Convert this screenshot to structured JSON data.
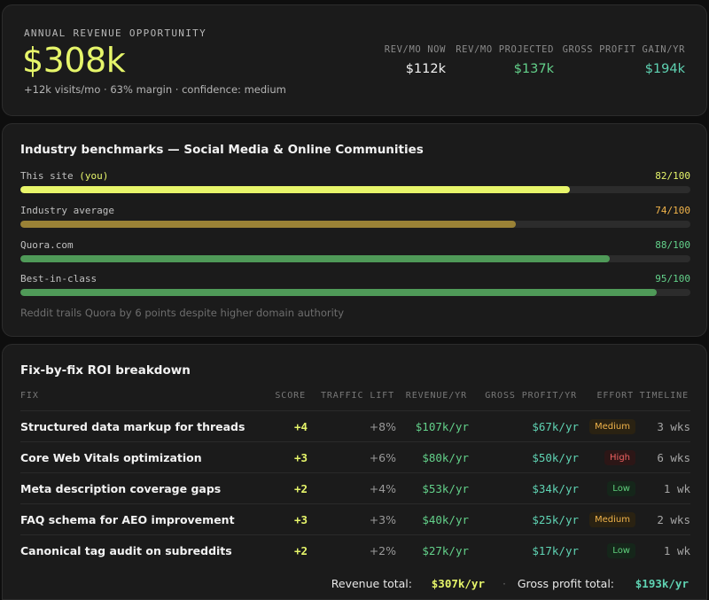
{
  "summary": {
    "kicker": "ANNUAL REVENUE OPPORTUNITY",
    "value": "$308k",
    "subline": "+12k visits/mo · 63% margin · confidence: medium",
    "metrics": [
      {
        "label": "REV/MO NOW",
        "value": "$112k"
      },
      {
        "label": "REV/MO PROJECTED",
        "value": "$137k"
      },
      {
        "label": "GROSS PROFIT GAIN/YR",
        "value": "$194k"
      }
    ]
  },
  "benchmarks": {
    "title": "Industry benchmarks — Social Media & Online Communities",
    "rows": [
      {
        "name": "This site",
        "suffix": "(you)",
        "score_text": "82/100",
        "score": 82,
        "color": "#e8f56a"
      },
      {
        "name": "Industry average",
        "suffix": "",
        "score_text": "74/100",
        "score": 74,
        "color": "#9a8236"
      },
      {
        "name": "Quora.com",
        "suffix": "",
        "score_text": "88/100",
        "score": 88,
        "color": "#4f9a58"
      },
      {
        "name": "Best-in-class",
        "suffix": "",
        "score_text": "95/100",
        "score": 95,
        "color": "#4f9a58"
      }
    ],
    "score_colors": [
      "#e6f56a",
      "#f0b34a",
      "#63d18a",
      "#63d18a"
    ],
    "note": "Reddit trails Quora by 6 points despite higher domain authority"
  },
  "roi": {
    "title": "Fix-by-fix ROI breakdown",
    "headers": {
      "fix": "FIX",
      "score": "SCORE",
      "lift": "TRAFFIC LIFT",
      "revenue": "REVENUE/YR",
      "gross_profit": "GROSS PROFIT/YR",
      "effort": "EFFORT",
      "timeline": "TIMELINE"
    },
    "rows": [
      {
        "fix": "Structured data markup for threads",
        "score": "+4",
        "lift": "+8%",
        "revenue": "$107k/yr",
        "gross_profit": "$67k/yr",
        "effort": "Medium",
        "effort_level": "medium",
        "timeline": "3 wks"
      },
      {
        "fix": "Core Web Vitals optimization",
        "score": "+3",
        "lift": "+6%",
        "revenue": "$80k/yr",
        "gross_profit": "$50k/yr",
        "effort": "High",
        "effort_level": "high",
        "timeline": "6 wks"
      },
      {
        "fix": "Meta description coverage gaps",
        "score": "+2",
        "lift": "+4%",
        "revenue": "$53k/yr",
        "gross_profit": "$34k/yr",
        "effort": "Low",
        "effort_level": "low",
        "timeline": "1 wk"
      },
      {
        "fix": "FAQ schema for AEO improvement",
        "score": "+3",
        "lift": "+3%",
        "revenue": "$40k/yr",
        "gross_profit": "$25k/yr",
        "effort": "Medium",
        "effort_level": "medium",
        "timeline": "2 wks"
      },
      {
        "fix": "Canonical tag audit on subreddits",
        "score": "+2",
        "lift": "+2%",
        "revenue": "$27k/yr",
        "gross_profit": "$17k/yr",
        "effort": "Low",
        "effort_level": "low",
        "timeline": "1 wk"
      }
    ],
    "totals": {
      "revenue_label": "Revenue total:",
      "revenue_value": "$307k/yr",
      "separator": "·",
      "gross_profit_label": "Gross profit total:",
      "gross_profit_value": "$193k/yr"
    }
  }
}
